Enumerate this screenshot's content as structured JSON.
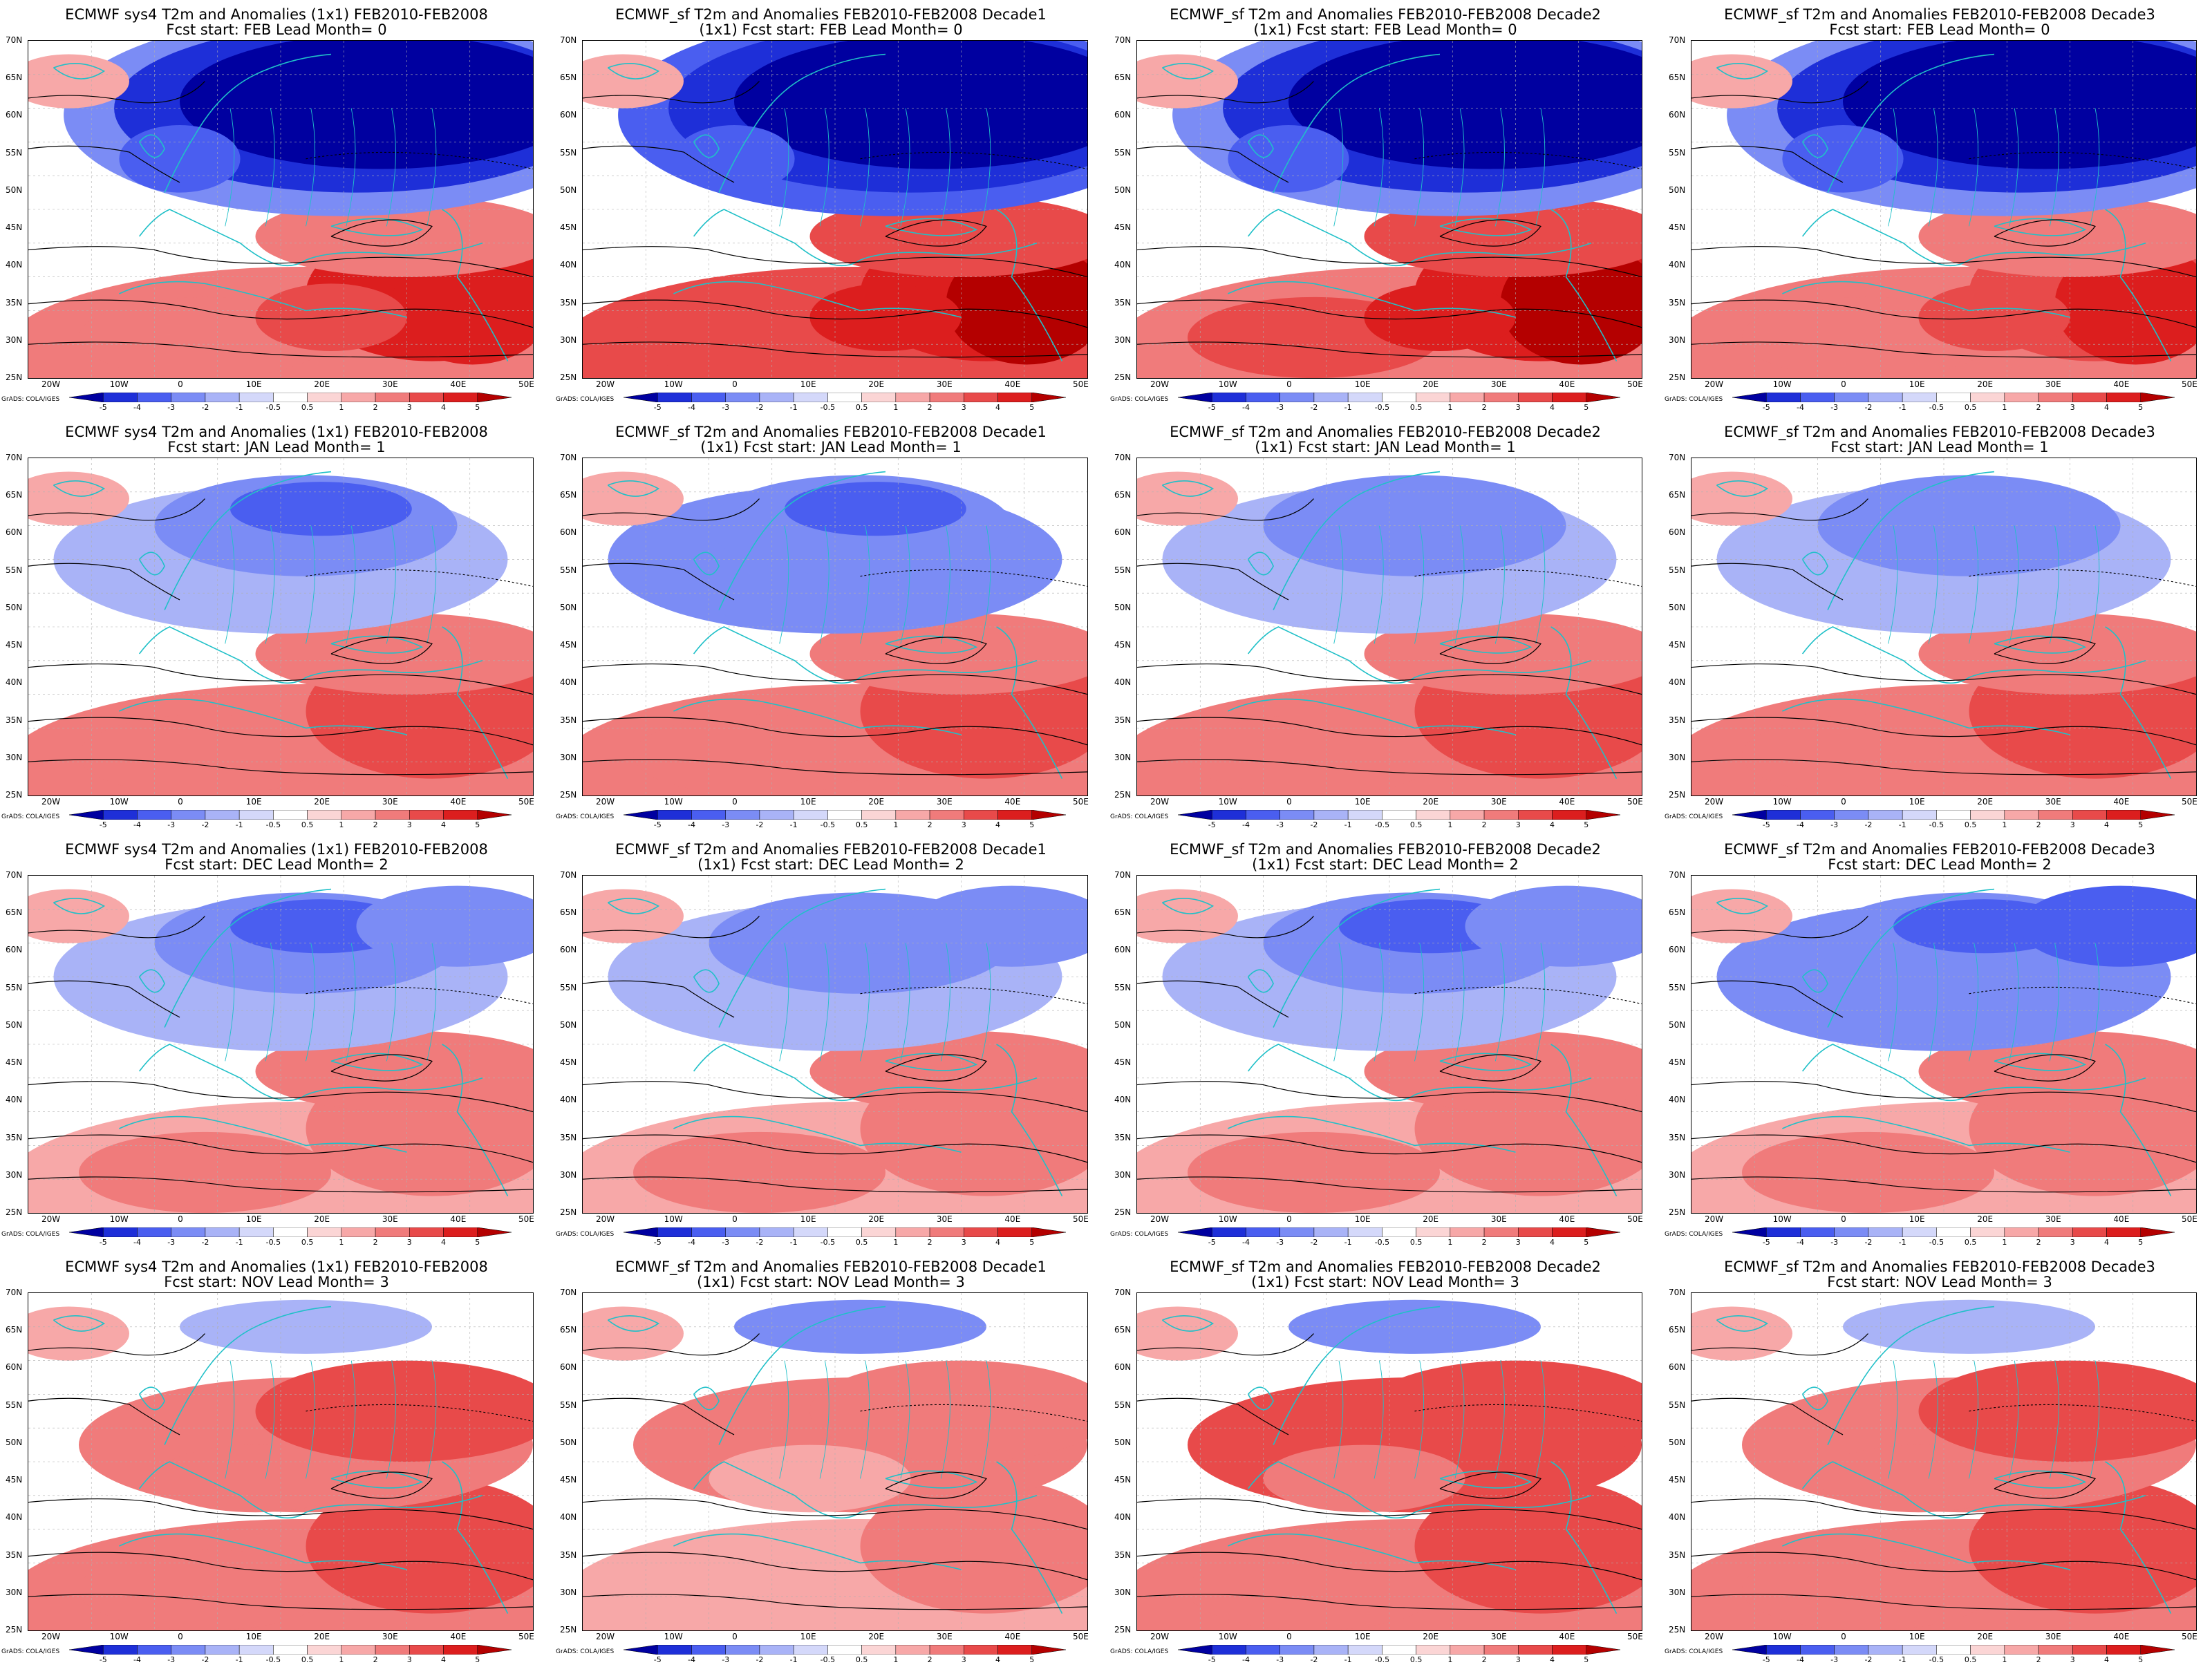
{
  "credit": "GrADS: COLA/IGES",
  "axes": {
    "lat_labels": [
      "70N",
      "65N",
      "60N",
      "55N",
      "50N",
      "45N",
      "40N",
      "35N",
      "30N",
      "25N"
    ],
    "lon_labels": [
      "20W",
      "10W",
      "0",
      "10E",
      "20E",
      "30E",
      "40E",
      "50E"
    ]
  },
  "colorbar": {
    "labels": [
      "-5",
      "-4",
      "-3",
      "-2",
      "-1",
      "-0.5",
      "0.5",
      "1",
      "2",
      "3",
      "4",
      "5"
    ],
    "colors": [
      "#0000a0",
      "#1e2fd8",
      "#4a5ef0",
      "#7b8cf5",
      "#a9b3f7",
      "#d4d8fa",
      "#ffffff",
      "#fbd5d5",
      "#f7a8a8",
      "#f07b7b",
      "#e84a4a",
      "#dc1e1e",
      "#b40000"
    ]
  },
  "contour_color": "#000000",
  "coast_color": "#20c0c8",
  "panels": [
    {
      "title1": "ECMWF sys4 T2m and Anomalies (1x1) FEB2010-FEB2008",
      "title2": "Fcst start: FEB   Lead Month= 0",
      "cold": 0.95,
      "warm": 0.7,
      "north": 0.9,
      "pattern": "A"
    },
    {
      "title1": "ECMWF_sf T2m and Anomalies FEB2010-FEB2008 Decade1",
      "title2": "(1x1) Fcst start: FEB   Lead Month= 0",
      "cold": 1.0,
      "warm": 0.85,
      "north": 0.9,
      "pattern": "A"
    },
    {
      "title1": "ECMWF_sf T2m and Anomalies FEB2010-FEB2008 Decade2",
      "title2": "(1x1) Fcst start: FEB   Lead Month= 0",
      "cold": 0.97,
      "warm": 0.8,
      "north": 0.9,
      "pattern": "A"
    },
    {
      "title1": "ECMWF_sf T2m and Anomalies FEB2010-FEB2008 Decade3",
      "title2": "Fcst start: FEB   Lead Month= 0",
      "cold": 0.9,
      "warm": 0.65,
      "north": 0.9,
      "pattern": "A"
    },
    {
      "title1": "ECMWF sys4 T2m and Anomalies (1x1) FEB2010-FEB2008",
      "title2": "Fcst start: JAN   Lead Month= 1",
      "cold": 0.5,
      "warm": 0.55,
      "north": 0.6,
      "pattern": "B"
    },
    {
      "title1": "ECMWF_sf T2m and Anomalies FEB2010-FEB2008 Decade1",
      "title2": "(1x1) Fcst start: JAN   Lead Month= 1",
      "cold": 0.6,
      "warm": 0.65,
      "north": 0.65,
      "pattern": "B"
    },
    {
      "title1": "ECMWF_sf T2m and Anomalies FEB2010-FEB2008 Decade2",
      "title2": "(1x1) Fcst start: JAN   Lead Month= 1",
      "cold": 0.45,
      "warm": 0.5,
      "north": 0.55,
      "pattern": "B"
    },
    {
      "title1": "ECMWF_sf T2m and Anomalies FEB2010-FEB2008 Decade3",
      "title2": "Fcst start: JAN   Lead Month= 1",
      "cold": 0.45,
      "warm": 0.55,
      "north": 0.55,
      "pattern": "B"
    },
    {
      "title1": "ECMWF sys4 T2m and Anomalies (1x1) FEB2010-FEB2008",
      "title2": "Fcst start: DEC   Lead Month= 2",
      "cold": 0.55,
      "warm": 0.45,
      "north": 0.6,
      "pattern": "C"
    },
    {
      "title1": "ECMWF_sf T2m and Anomalies FEB2010-FEB2008 Decade1",
      "title2": "(1x1) Fcst start: DEC   Lead Month= 2",
      "cold": 0.45,
      "warm": 0.45,
      "north": 0.55,
      "pattern": "C"
    },
    {
      "title1": "ECMWF_sf T2m and Anomalies FEB2010-FEB2008 Decade2",
      "title2": "(1x1) Fcst start: DEC   Lead Month= 2",
      "cold": 0.55,
      "warm": 0.45,
      "north": 0.6,
      "pattern": "C"
    },
    {
      "title1": "ECMWF_sf T2m and Anomalies FEB2010-FEB2008 Decade3",
      "title2": "Fcst start: DEC   Lead Month= 2",
      "cold": 0.6,
      "warm": 0.45,
      "north": 0.6,
      "pattern": "C"
    },
    {
      "title1": "ECMWF sys4 T2m and Anomalies (1x1) FEB2010-FEB2008",
      "title2": "Fcst start: NOV   Lead Month= 3",
      "cold": 0.2,
      "warm": 0.5,
      "north": 0.3,
      "pattern": "D"
    },
    {
      "title1": "ECMWF_sf T2m and Anomalies FEB2010-FEB2008 Decade1",
      "title2": "(1x1) Fcst start: NOV   Lead Month= 3",
      "cold": 0.3,
      "warm": 0.4,
      "north": 0.3,
      "pattern": "D"
    },
    {
      "title1": "ECMWF_sf T2m and Anomalies FEB2010-FEB2008 Decade2",
      "title2": "(1x1) Fcst start: NOV   Lead Month= 3",
      "cold": 0.3,
      "warm": 0.65,
      "north": 0.3,
      "pattern": "D"
    },
    {
      "title1": "ECMWF_sf T2m and Anomalies FEB2010-FEB2008 Decade3",
      "title2": "Fcst start: NOV   Lead Month= 3",
      "cold": 0.15,
      "warm": 0.6,
      "north": 0.3,
      "pattern": "D"
    }
  ]
}
